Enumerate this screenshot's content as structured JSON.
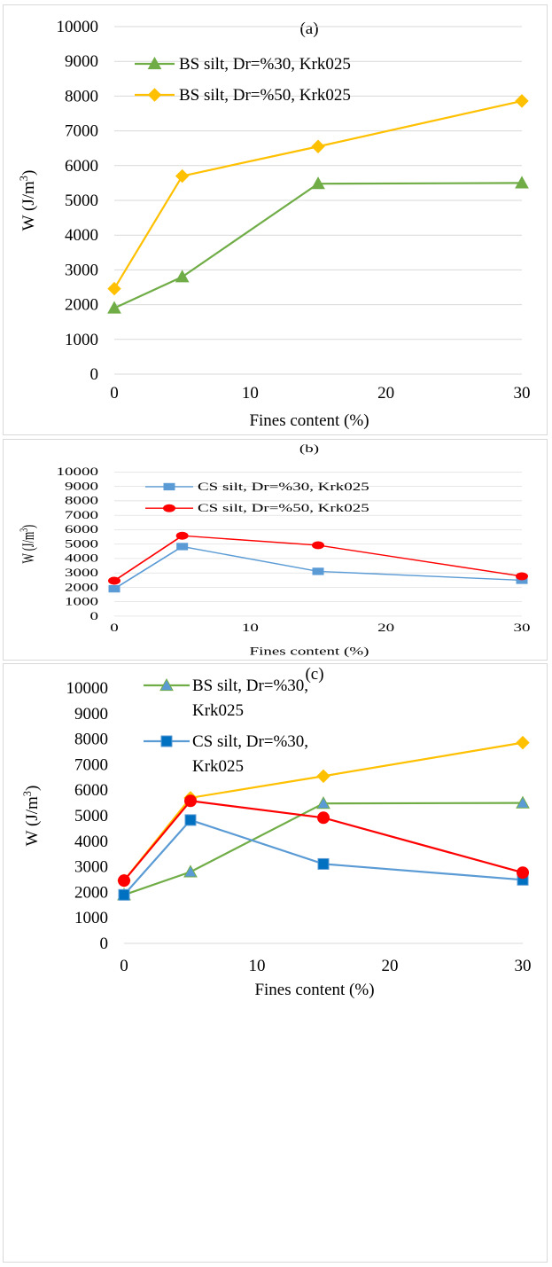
{
  "chart_data": [
    {
      "type": "line",
      "title": "(a)",
      "xlabel": "Fines content (%)",
      "ylabel": "W (J/m",
      "ylabel_sup": "3",
      "ylabel_close": ")",
      "x_ticks": [
        "0",
        "10",
        "20",
        "30"
      ],
      "y_ticks": [
        "0",
        "1000",
        "2000",
        "3000",
        "4000",
        "5000",
        "6000",
        "7000",
        "8000",
        "9000",
        "10000"
      ],
      "xlim": [
        0,
        30
      ],
      "ylim": [
        0,
        10000
      ],
      "grid": "horizontal",
      "legend_position": "top-left",
      "series": [
        {
          "name": "BS silt, Dr=%30, Krk025",
          "marker": "triangle",
          "color": "#70ad47",
          "x": [
            0,
            5,
            15,
            30
          ],
          "values": [
            1900,
            2800,
            5480,
            5500
          ]
        },
        {
          "name": "BS silt, Dr=%50, Krk025",
          "marker": "diamond",
          "color": "#ffc000",
          "x": [
            0,
            5,
            15,
            30
          ],
          "values": [
            2460,
            5700,
            6550,
            7860
          ]
        }
      ]
    },
    {
      "type": "line",
      "title": "(b)",
      "xlabel": "Fines content (%)",
      "ylabel": "W (J/m",
      "ylabel_sup": "3",
      "ylabel_close": ")",
      "x_ticks": [
        "0",
        "10",
        "20",
        "30"
      ],
      "y_ticks": [
        "0",
        "1000",
        "2000",
        "3000",
        "4000",
        "5000",
        "6000",
        "7000",
        "8000",
        "9000",
        "10000"
      ],
      "xlim": [
        0,
        30
      ],
      "ylim": [
        0,
        10000
      ],
      "grid": "horizontal",
      "legend_position": "top-left",
      "series": [
        {
          "name": "CS silt, Dr=%30, Krk025",
          "marker": "square",
          "color": "#5b9bd5",
          "x": [
            0,
            5,
            15,
            30
          ],
          "values": [
            1900,
            4830,
            3110,
            2490
          ]
        },
        {
          "name": "CS silt, Dr=%50, Krk025",
          "marker": "circle",
          "color": "#ff0000",
          "x": [
            0,
            5,
            15,
            30
          ],
          "values": [
            2460,
            5580,
            4920,
            2770
          ]
        }
      ]
    },
    {
      "type": "line",
      "title": "(c)",
      "xlabel": "Fines content (%)",
      "ylabel": "W (J/m",
      "ylabel_sup": "3",
      "ylabel_close": ")",
      "x_ticks": [
        "0",
        "10",
        "20",
        "30"
      ],
      "y_ticks": [
        "0",
        "1000",
        "2000",
        "3000",
        "4000",
        "5000",
        "6000",
        "7000",
        "8000",
        "9000",
        "10000"
      ],
      "xlim": [
        0,
        30
      ],
      "ylim": [
        0,
        10000
      ],
      "grid": "none",
      "legend_position": "top-left",
      "series": [
        {
          "name": "BS silt, Dr=%30, Krk025",
          "legend_lines": [
            "BS silt, Dr=%30,",
            "Krk025"
          ],
          "marker": "triangle",
          "color": "#70ad47",
          "marker_fill": "#5b9bd5",
          "x": [
            0,
            5,
            15,
            30
          ],
          "values": [
            1900,
            2800,
            5480,
            5500
          ]
        },
        {
          "name": "CS silt, Dr=%30, Krk025",
          "legend_lines": [
            "CS silt, Dr=%30,",
            "Krk025"
          ],
          "marker": "square",
          "color": "#5b9bd5",
          "marker_fill": "#0070c0",
          "x": [
            0,
            5,
            15,
            30
          ],
          "values": [
            1900,
            4830,
            3110,
            2490
          ]
        },
        {
          "marker": "diamond",
          "color": "#ffc000",
          "x": [
            0,
            5,
            15,
            30
          ],
          "values": [
            2460,
            5700,
            6550,
            7860
          ]
        },
        {
          "marker": "circle",
          "color": "#ff0000",
          "x": [
            0,
            5,
            15,
            30
          ],
          "values": [
            2460,
            5580,
            4920,
            2770
          ]
        }
      ]
    }
  ]
}
